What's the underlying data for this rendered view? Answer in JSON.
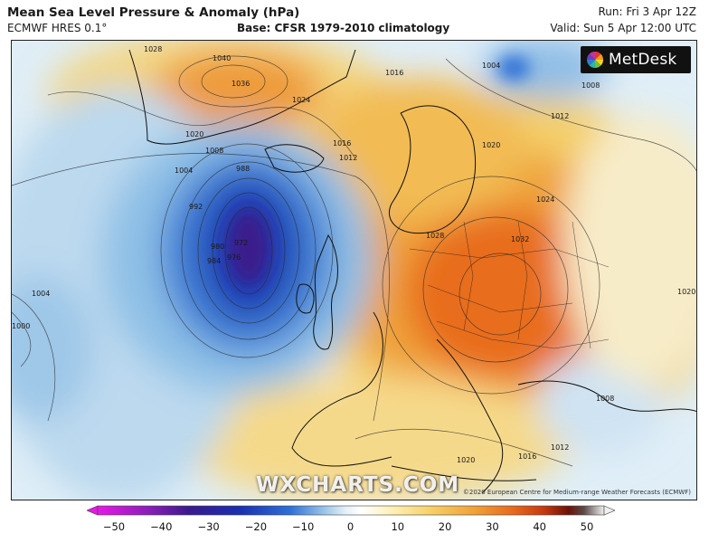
{
  "header": {
    "title": "Mean Sea Level Pressure & Anomaly (hPa)",
    "model": "ECMWF HRES 0.1°",
    "base": "Base: CFSR 1979-2010 climatology",
    "run": "Run: Fri 3 Apr 12Z",
    "valid": "Valid: Sun 5 Apr 12:00 UTC"
  },
  "branding": {
    "logo_text": "MetDesk",
    "watermark": "WXCHARTS.COM",
    "copyright": "©2020 European Centre for Medium-range Weather Forecasts (ECMWF)"
  },
  "isobar_labels": [
    "1028",
    "1024",
    "1036",
    "1040",
    "1020",
    "1008",
    "1004",
    "1016",
    "1012",
    "988",
    "992",
    "980",
    "972",
    "984",
    "976",
    "1000",
    "1004",
    "1008",
    "1012",
    "1016",
    "1020",
    "1024",
    "1028",
    "1032",
    "1020",
    "1016",
    "1012",
    "1008",
    "1004",
    "1004",
    "1008",
    "1012",
    "1020"
  ],
  "colorbar": {
    "ticks": [
      "−50",
      "−40",
      "−30",
      "−20",
      "−10",
      "0",
      "10",
      "20",
      "30",
      "40",
      "50"
    ],
    "colors": [
      "#e619e6",
      "#8a1fb8",
      "#3a1a8c",
      "#1a2fb0",
      "#2f6fd6",
      "#7fb2e6",
      "#cfe4f2",
      "#ffffff",
      "#fff4c2",
      "#f7d66e",
      "#f0a43a",
      "#e76a1e",
      "#c63a10",
      "#8e1a0e",
      "#4a0a08",
      "#e0e0e0"
    ]
  }
}
